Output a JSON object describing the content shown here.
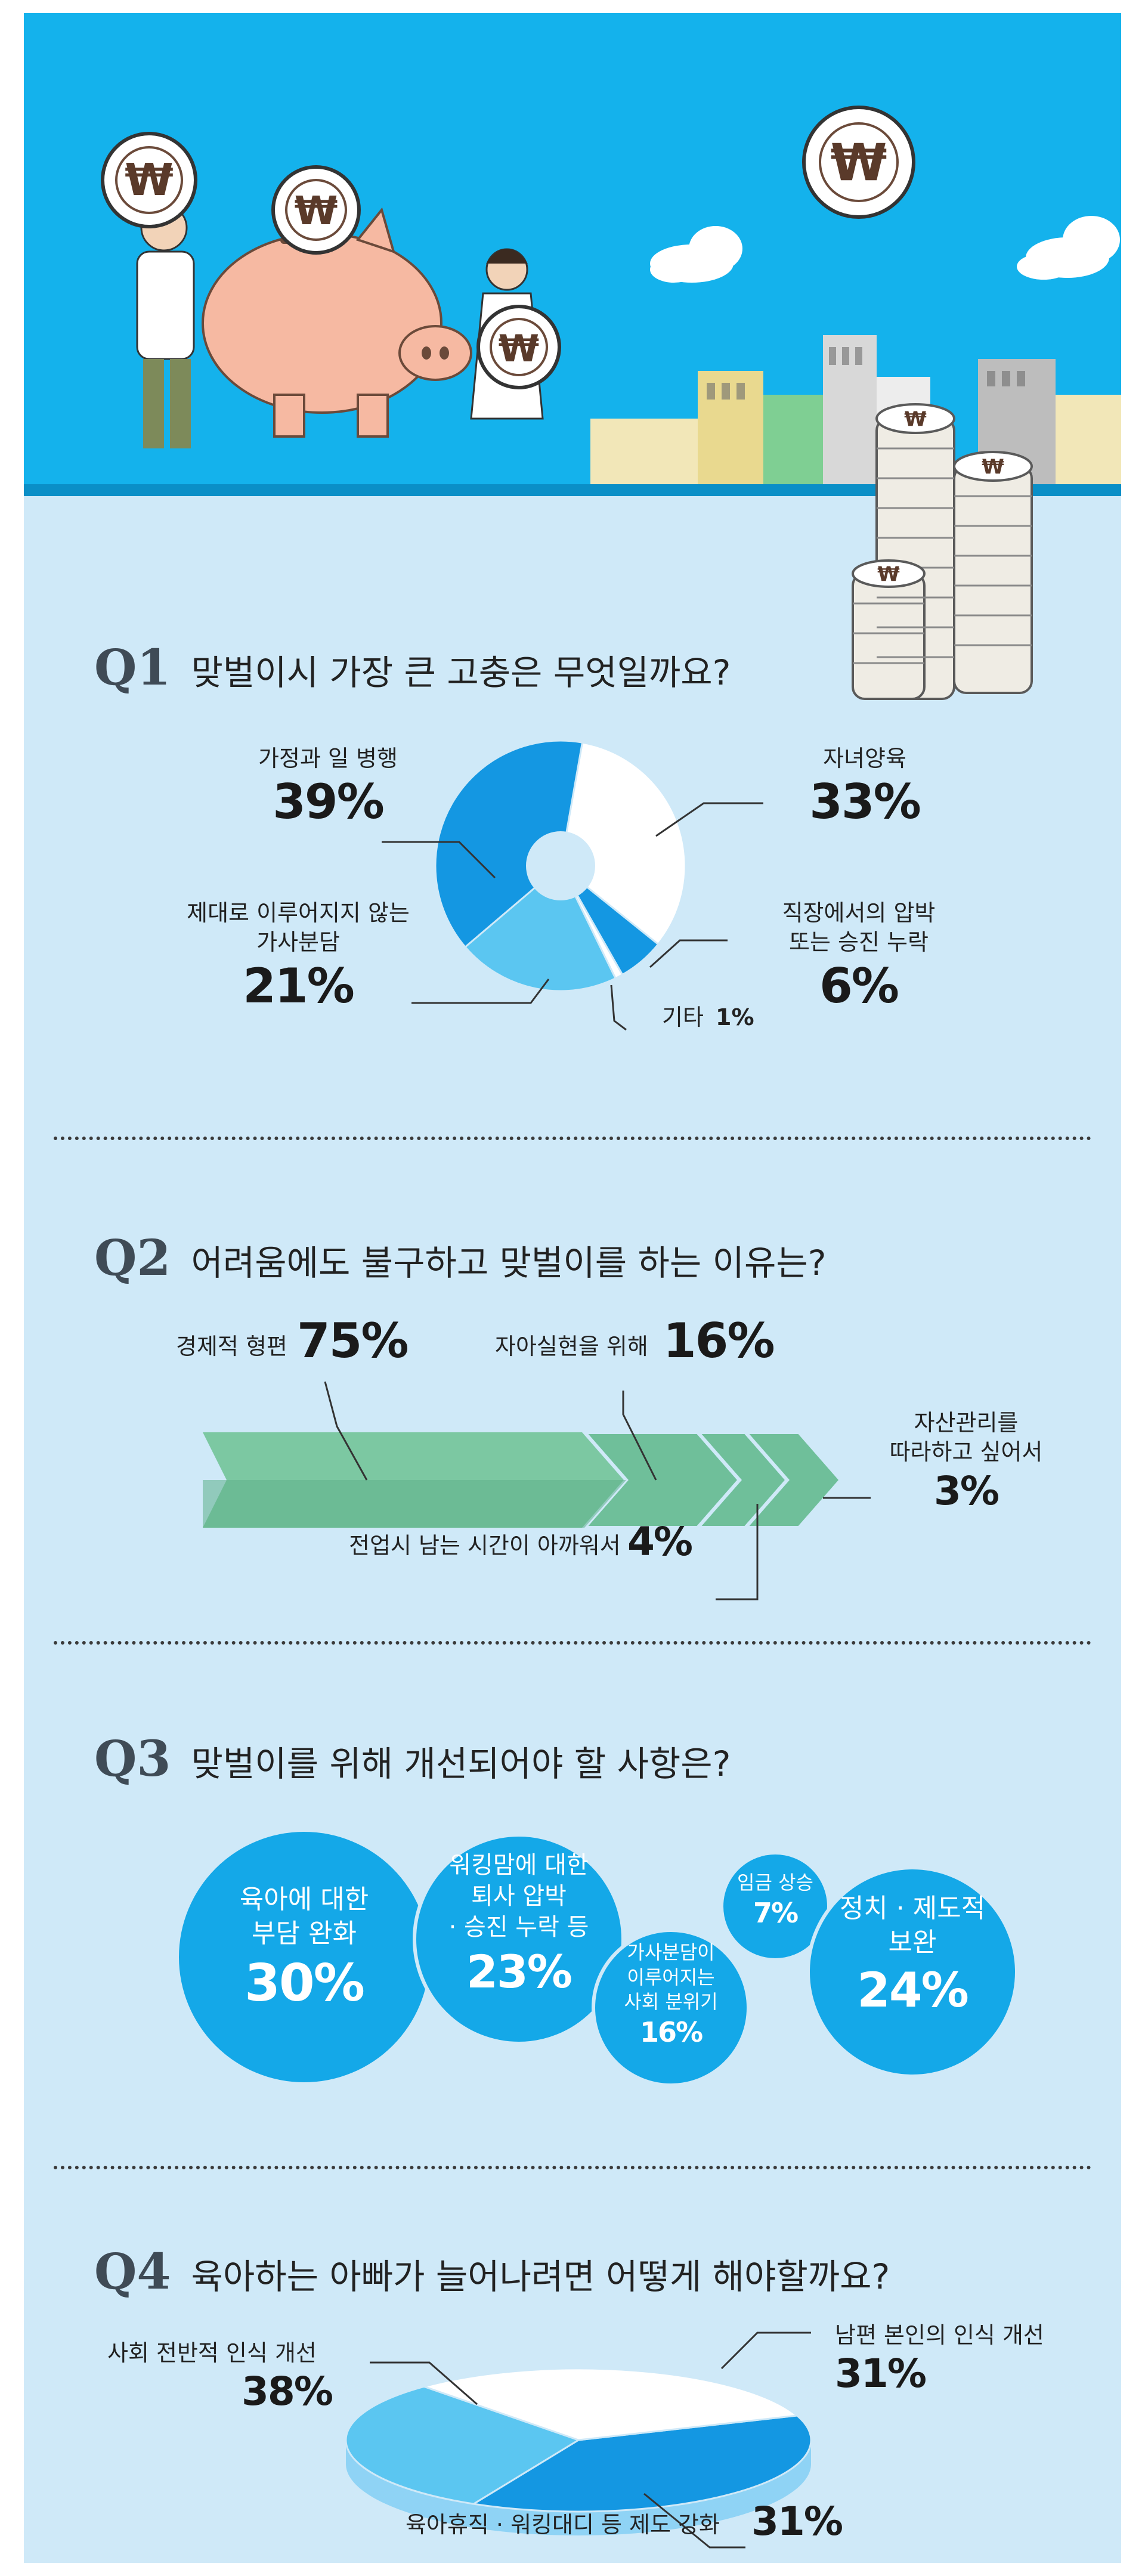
{
  "colors": {
    "hero_bg": "#14b2ec",
    "page_bg": "#cfe9f8",
    "dark_blue": "#1497e2",
    "mid_blue": "#5bc6f1",
    "green": "#6fbf9a",
    "white": "#ffffff"
  },
  "hero": {
    "coin_symbol": "₩"
  },
  "q1": {
    "num": "Q1",
    "question": "맞벌이시 가장 큰 고충은 무엇일까요?"
  },
  "q2": {
    "num": "Q2",
    "question": "어려움에도 불구하고 맞벌이를 하는 이유는?"
  },
  "q3": {
    "num": "Q3",
    "question": "맞벌이를 위해 개선되어야 할 사항은?"
  },
  "q4": {
    "num": "Q4",
    "question": "육아하는 아빠가 늘어나려면 어떻게 해야할까요?"
  },
  "chart_data": [
    {
      "type": "pie",
      "id": "q1",
      "donut": true,
      "slices": [
        {
          "label": "자녀양육",
          "value": 33,
          "display": "33%",
          "color": "#ffffff"
        },
        {
          "label": "직장에서의 압박\n또는 승진 누락",
          "value": 6,
          "display": "6%",
          "color": "#1497e2"
        },
        {
          "label": "기타",
          "value": 1,
          "display": "1%",
          "color": "#ffffff"
        },
        {
          "label": "제대로 이루어지지 않는\n가사분담",
          "value": 21,
          "display": "21%",
          "color": "#5bc6f1"
        },
        {
          "label": "가정과 일 병행",
          "value": 39,
          "display": "39%",
          "color": "#1497e2"
        }
      ]
    },
    {
      "type": "bar",
      "id": "q2",
      "orientation": "horizontal-stacked-arrows",
      "items": [
        {
          "label": "경제적 형편",
          "value": 75,
          "display": "75%"
        },
        {
          "label": "자아실현을 위해",
          "value": 16,
          "display": "16%"
        },
        {
          "label": "전업시 남는 시간이 아까워서",
          "value": 4,
          "display": "4%"
        },
        {
          "label": "자산관리를\n따라하고 싶어서",
          "value": 3,
          "display": "3%"
        }
      ]
    },
    {
      "type": "bubble",
      "id": "q3",
      "items": [
        {
          "label": "육아에 대한\n부담 완화",
          "value": 30,
          "display": "30%"
        },
        {
          "label": "워킹맘에 대한\n퇴사 압박\n· 승진 누락 등",
          "value": 23,
          "display": "23%"
        },
        {
          "label": "가사분담이\n이루어지는\n사회 분위기",
          "value": 16,
          "display": "16%"
        },
        {
          "label": "임금 상승",
          "value": 7,
          "display": "7%"
        },
        {
          "label": "정치 · 제도적\n보완",
          "value": 24,
          "display": "24%"
        }
      ]
    },
    {
      "type": "pie",
      "id": "q4",
      "style": "3d",
      "slices": [
        {
          "label": "사회 전반적 인식 개선",
          "value": 38,
          "display": "38%",
          "color": "#1497e2"
        },
        {
          "label": "남편 본인의 인식 개선",
          "value": 31,
          "display": "31%",
          "color": "#5bc6f1"
        },
        {
          "label": "육아휴직 · 워킹대디 등 제도 강화",
          "value": 31,
          "display": "31%",
          "color": "#ffffff"
        }
      ]
    }
  ]
}
